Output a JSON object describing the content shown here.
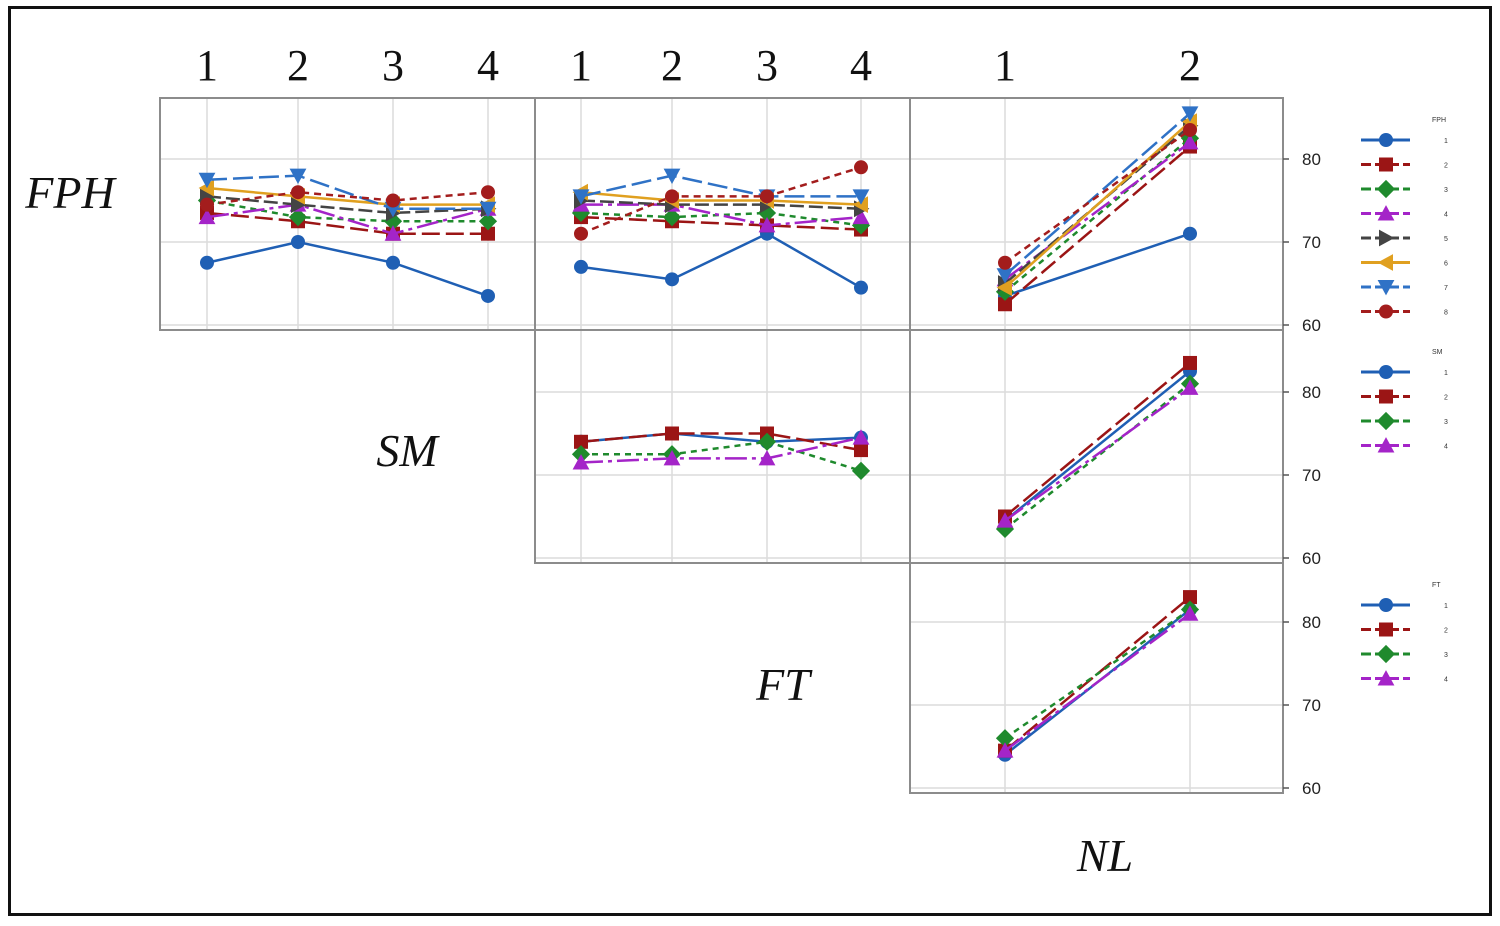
{
  "chart_data": {
    "type": "line",
    "title": "",
    "ylim": [
      60,
      85
    ],
    "yticks": [
      60,
      70,
      80
    ],
    "grid": true,
    "factors": [
      {
        "name": "FPH",
        "levels": [
          "1",
          "2",
          "3",
          "4",
          "5",
          "6",
          "7",
          "8"
        ]
      },
      {
        "name": "SM",
        "levels": [
          "1",
          "2",
          "3",
          "4"
        ]
      },
      {
        "name": "FT",
        "levels": [
          "1",
          "2",
          "3",
          "4"
        ]
      },
      {
        "name": "NL",
        "levels": [
          "1",
          "2"
        ]
      }
    ],
    "top_tick_labels": {
      "SM": [
        "1",
        "2",
        "3",
        "4"
      ],
      "FT": [
        "1",
        "2",
        "3",
        "4"
      ],
      "NL": [
        "1",
        "2"
      ]
    },
    "row_labels": [
      "FPH",
      "SM",
      "FT"
    ],
    "bottom_label": "NL",
    "legends": [
      {
        "title": "FPH",
        "entries": [
          "1",
          "2",
          "3",
          "4",
          "5",
          "6",
          "7",
          "8"
        ]
      },
      {
        "title": "SM",
        "entries": [
          "1",
          "2",
          "3",
          "4"
        ]
      },
      {
        "title": "FT",
        "entries": [
          "1",
          "2",
          "3",
          "4"
        ]
      }
    ],
    "panels": [
      {
        "row_factor": "FPH",
        "col_factor": "SM",
        "x": [
          "1",
          "2",
          "3",
          "4"
        ],
        "series": [
          {
            "name": "1",
            "values": [
              67.5,
              70.0,
              67.5,
              63.5
            ]
          },
          {
            "name": "2",
            "values": [
              73.5,
              72.5,
              71.0,
              71.0
            ]
          },
          {
            "name": "3",
            "values": [
              75.0,
              73.0,
              72.5,
              72.5
            ]
          },
          {
            "name": "4",
            "values": [
              73.0,
              74.5,
              71.0,
              74.0
            ]
          },
          {
            "name": "5",
            "values": [
              75.5,
              74.5,
              73.5,
              74.0
            ]
          },
          {
            "name": "6",
            "values": [
              76.5,
              75.5,
              74.5,
              74.5
            ]
          },
          {
            "name": "7",
            "values": [
              77.5,
              78.0,
              74.0,
              74.0
            ]
          },
          {
            "name": "8",
            "values": [
              74.5,
              76.0,
              75.0,
              76.0
            ]
          }
        ]
      },
      {
        "row_factor": "FPH",
        "col_factor": "FT",
        "x": [
          "1",
          "2",
          "3",
          "4"
        ],
        "series": [
          {
            "name": "1",
            "values": [
              67.0,
              65.5,
              71.0,
              64.5
            ]
          },
          {
            "name": "2",
            "values": [
              73.0,
              72.5,
              72.0,
              71.5
            ]
          },
          {
            "name": "3",
            "values": [
              73.5,
              73.0,
              73.5,
              72.0
            ]
          },
          {
            "name": "4",
            "values": [
              74.5,
              74.5,
              72.0,
              73.0
            ]
          },
          {
            "name": "5",
            "values": [
              75.0,
              74.5,
              74.5,
              74.0
            ]
          },
          {
            "name": "6",
            "values": [
              76.0,
              75.0,
              75.0,
              74.5
            ]
          },
          {
            "name": "7",
            "values": [
              75.5,
              78.0,
              75.5,
              75.5
            ]
          },
          {
            "name": "8",
            "values": [
              71.0,
              75.5,
              75.5,
              79.0
            ]
          }
        ]
      },
      {
        "row_factor": "FPH",
        "col_factor": "NL",
        "x": [
          "1",
          "2"
        ],
        "series": [
          {
            "name": "1",
            "values": [
              63.5,
              71.0
            ]
          },
          {
            "name": "2",
            "values": [
              62.5,
              81.5
            ]
          },
          {
            "name": "3",
            "values": [
              64.0,
              82.5
            ]
          },
          {
            "name": "4",
            "values": [
              65.5,
              82.0
            ]
          },
          {
            "name": "5",
            "values": [
              65.0,
              84.0
            ]
          },
          {
            "name": "6",
            "values": [
              64.5,
              84.5
            ]
          },
          {
            "name": "7",
            "values": [
              66.0,
              85.5
            ]
          },
          {
            "name": "8",
            "values": [
              67.5,
              83.5
            ]
          }
        ]
      },
      {
        "row_factor": "SM",
        "col_factor": "FT",
        "x": [
          "1",
          "2",
          "3",
          "4"
        ],
        "series": [
          {
            "name": "1",
            "values": [
              74.0,
              75.0,
              74.0,
              74.5
            ]
          },
          {
            "name": "2",
            "values": [
              74.0,
              75.0,
              75.0,
              73.0
            ]
          },
          {
            "name": "3",
            "values": [
              72.5,
              72.5,
              74.0,
              70.5
            ]
          },
          {
            "name": "4",
            "values": [
              71.5,
              72.0,
              72.0,
              74.5
            ]
          }
        ]
      },
      {
        "row_factor": "SM",
        "col_factor": "NL",
        "x": [
          "1",
          "2"
        ],
        "series": [
          {
            "name": "1",
            "values": [
              64.5,
              82.5
            ]
          },
          {
            "name": "2",
            "values": [
              65.0,
              83.5
            ]
          },
          {
            "name": "3",
            "values": [
              63.5,
              81.0
            ]
          },
          {
            "name": "4",
            "values": [
              64.5,
              80.5
            ]
          }
        ]
      },
      {
        "row_factor": "FT",
        "col_factor": "NL",
        "x": [
          "1",
          "2"
        ],
        "series": [
          {
            "name": "1",
            "values": [
              64.0,
              81.5
            ]
          },
          {
            "name": "2",
            "values": [
              64.5,
              83.0
            ]
          },
          {
            "name": "3",
            "values": [
              66.0,
              81.5
            ]
          },
          {
            "name": "4",
            "values": [
              64.5,
              81.0
            ]
          }
        ]
      }
    ]
  },
  "series_styles": [
    {
      "color": "#1f5fb4",
      "marker": "circle",
      "dash": ""
    },
    {
      "color": "#9b1515",
      "marker": "square",
      "dash": "18,6"
    },
    {
      "color": "#1f8a2d",
      "marker": "diamond",
      "dash": "6,5"
    },
    {
      "color": "#a424c8",
      "marker": "triangle-up",
      "dash": "22,5,4,5"
    },
    {
      "color": "#444444",
      "marker": "triangle-right",
      "dash": "14,5"
    },
    {
      "color": "#e0a020",
      "marker": "triangle-left",
      "dash": ""
    },
    {
      "color": "#2f72c6",
      "marker": "triangle-down",
      "dash": "20,6"
    },
    {
      "color": "#a31d1d",
      "marker": "circle",
      "dash": "7,5"
    }
  ]
}
